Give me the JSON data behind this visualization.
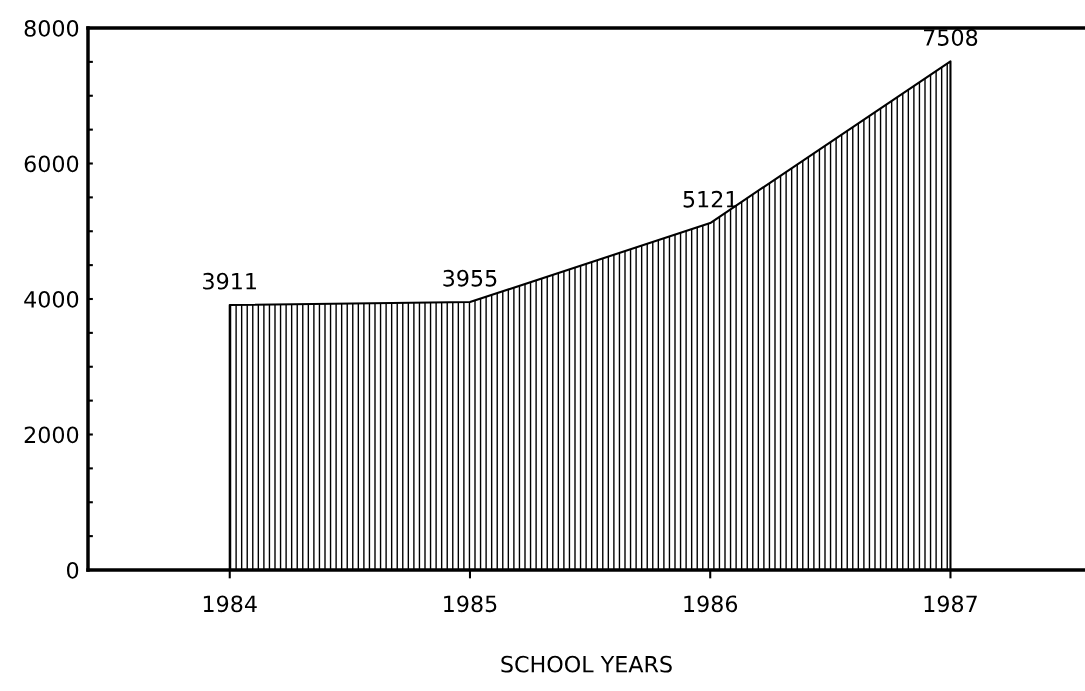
{
  "chart_data": {
    "type": "area",
    "xlabel": "SCHOOL YEARS",
    "categories": [
      "1984",
      "1985",
      "1986",
      "1987"
    ],
    "series": [
      {
        "color": "#000000",
        "values": [
          3911,
          3955,
          5121,
          7508
        ]
      }
    ],
    "data_labels": true,
    "ylim": [
      0,
      8000
    ],
    "yticks": [
      0,
      {
        "value": 500,
        "label": null
      },
      {
        "value": 1000,
        "label": null
      },
      {
        "value": 1500,
        "label": null
      },
      2000,
      {
        "value": 2500,
        "label": null
      },
      {
        "value": 3000,
        "label": null
      },
      {
        "value": 3500,
        "label": null
      },
      4000,
      {
        "value": 4500,
        "label": null
      },
      {
        "value": 5000,
        "label": null
      },
      {
        "value": 5500,
        "label": null
      },
      6000,
      {
        "value": 6500,
        "label": null
      },
      {
        "value": 7000,
        "label": null
      },
      {
        "value": 7500,
        "label": null
      },
      8000
    ],
    "grid": false,
    "legend": false
  }
}
